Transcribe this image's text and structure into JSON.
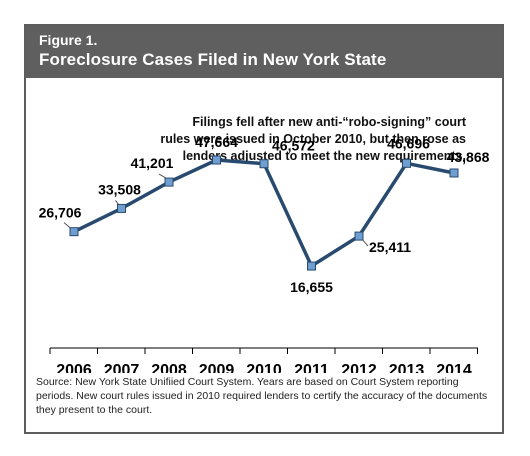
{
  "figure": {
    "label": "Figure 1.",
    "title": "Foreclosure Cases Filed in New York State"
  },
  "chart_data": {
    "type": "line",
    "categories": [
      "2006",
      "2007",
      "2008",
      "2009",
      "2010",
      "2011",
      "2012",
      "2013",
      "2014"
    ],
    "values": [
      26706,
      33508,
      41201,
      47664,
      46572,
      16655,
      25411,
      46696,
      43868
    ],
    "labels": [
      "26,706",
      "33,508",
      "41,201",
      "47,664",
      "46,572",
      "16,655",
      "25,411",
      "46,696",
      "43,868"
    ],
    "annotation": [
      "Filings fell after new anti-“robo-signing” court",
      "rules were issued in October 2010, but then rose as",
      "lenders adjusted to meet the new requirements."
    ],
    "ylim": [
      0,
      60000
    ],
    "grid": false,
    "line_color": "#284a6e",
    "marker_color": "#6f9fd0"
  },
  "source_text": "Source: New York State Unifiied Court System. Years are based on Court System reporting periods. New court rules issued in 2010 required lenders to certify the accuracy of the documents they present to the court."
}
